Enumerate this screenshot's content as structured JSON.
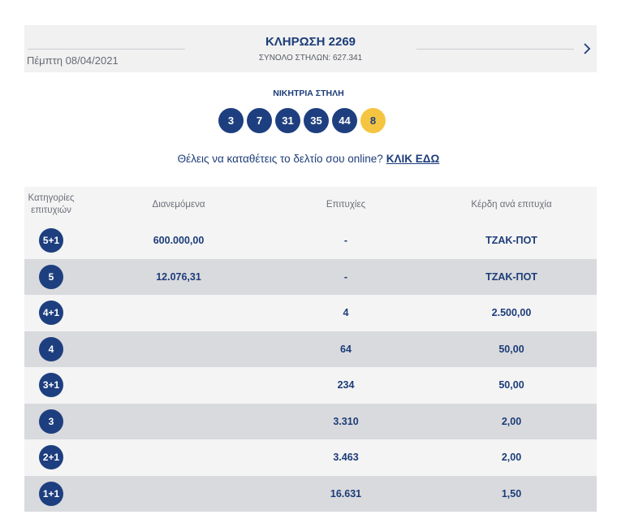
{
  "header": {
    "date": "Πέμπτη 08/04/2021",
    "title": "ΚΛΗΡΩΣΗ 2269",
    "subtitle": "ΣΥΝΟΛΟ ΣΤΗΛΩΝ: 627.341",
    "next_icon": "chevron-right-icon"
  },
  "winning": {
    "label": "ΝΙΚΗΤΡΙΑ ΣΤΗΛΗ",
    "numbers": [
      "3",
      "7",
      "31",
      "35",
      "44"
    ],
    "joker": "8",
    "colors": {
      "ball": "#1e3f7f",
      "joker": "#f5c542"
    }
  },
  "online": {
    "text": "Θέλεις να καταθέτεις το δελτίο σου online?",
    "link": "ΚΛΙΚ ΕΔΩ"
  },
  "table": {
    "headers": [
      "Κατηγορίες επιτυχιών",
      "Διανεμόμενα",
      "Επιτυχίες",
      "Κέρδη ανά επιτυχία"
    ],
    "rows": [
      {
        "category": "5+1",
        "distributed": "600.000,00",
        "winners": "-",
        "prize": "ΤΖΑΚ-ΠΟΤ"
      },
      {
        "category": "5",
        "distributed": "12.076,31",
        "winners": "-",
        "prize": "ΤΖΑΚ-ΠΟΤ"
      },
      {
        "category": "4+1",
        "distributed": "",
        "winners": "4",
        "prize": "2.500,00"
      },
      {
        "category": "4",
        "distributed": "",
        "winners": "64",
        "prize": "50,00"
      },
      {
        "category": "3+1",
        "distributed": "",
        "winners": "234",
        "prize": "50,00"
      },
      {
        "category": "3",
        "distributed": "",
        "winners": "3.310",
        "prize": "2,00"
      },
      {
        "category": "2+1",
        "distributed": "",
        "winners": "3.463",
        "prize": "2,00"
      },
      {
        "category": "1+1",
        "distributed": "",
        "winners": "16.631",
        "prize": "1,50"
      }
    ]
  }
}
